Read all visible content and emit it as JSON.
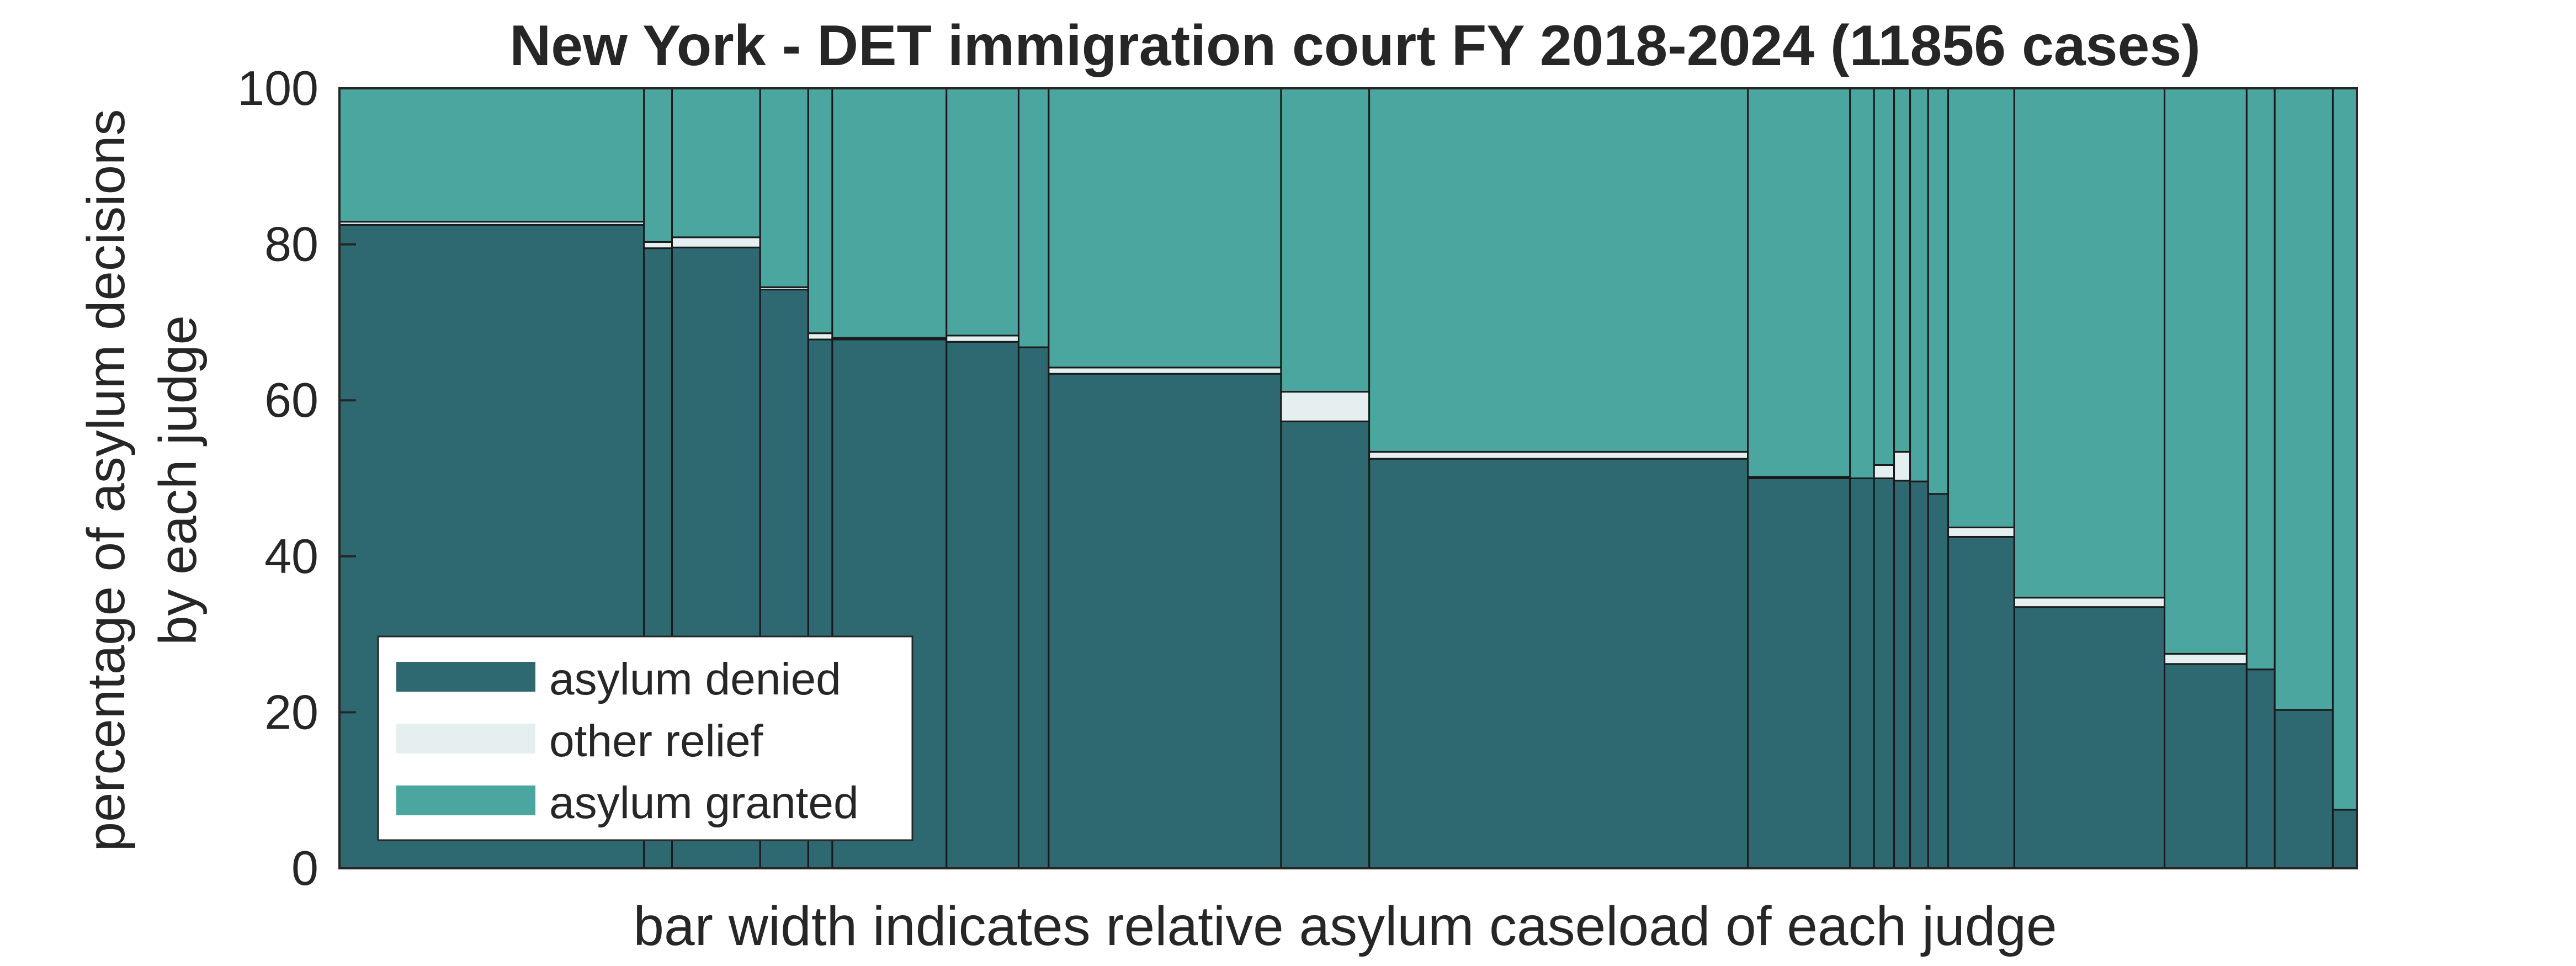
{
  "chart_data": {
    "type": "bar",
    "title": "New York - DET immigration court FY 2018-2024 (11856 cases)",
    "xlabel": "bar width indicates relative asylum caseload of each judge",
    "ylabel_line1": "percentage of asylum decisions",
    "ylabel_line2": "by each judge",
    "ylim": [
      0,
      100
    ],
    "yticks": [
      0,
      20,
      40,
      60,
      80,
      100
    ],
    "legend": {
      "placement": "bottom-left",
      "entries": [
        {
          "key": "denied",
          "label": "asylum denied"
        },
        {
          "key": "other",
          "label": "other relief"
        },
        {
          "key": "granted",
          "label": "asylum granted"
        }
      ]
    },
    "colors": {
      "denied": "#2e6870",
      "other": "#e5eff0",
      "granted": "#4aa69e"
    },
    "series": [
      {
        "name": "asylum denied",
        "key": "denied",
        "values": [
          82.5,
          79.5,
          79.6,
          74.2,
          67.8,
          67.8,
          67.5,
          66.8,
          63.4,
          57.3,
          52.5,
          50.0,
          50.0,
          50.0,
          49.7,
          49.6,
          48.0,
          42.5,
          33.5,
          26.2,
          25.5,
          20.3,
          7.5
        ]
      },
      {
        "name": "other relief",
        "key": "other",
        "values": [
          0.4,
          0.8,
          1.3,
          0.3,
          0.8,
          0.2,
          0.8,
          0.0,
          0.8,
          3.8,
          0.9,
          0.2,
          0.0,
          1.7,
          3.7,
          0.0,
          0.0,
          1.2,
          1.2,
          1.3,
          0.0,
          0.0,
          0.0
        ]
      },
      {
        "name": "asylum granted",
        "key": "granted",
        "values": [
          17.1,
          19.7,
          19.1,
          25.5,
          31.4,
          32.0,
          31.7,
          33.2,
          35.8,
          38.9,
          46.6,
          49.8,
          50.0,
          48.3,
          46.6,
          50.4,
          52.0,
          56.3,
          65.3,
          72.5,
          74.5,
          79.7,
          92.5
        ]
      }
    ],
    "caseload_share": [
      15.2,
      1.4,
      4.4,
      2.4,
      1.2,
      5.7,
      3.6,
      1.5,
      11.6,
      4.4,
      18.9,
      5.1,
      1.2,
      1.0,
      0.8,
      0.9,
      1.0,
      3.3,
      7.5,
      4.1,
      1.4,
      2.9,
      1.2
    ]
  }
}
